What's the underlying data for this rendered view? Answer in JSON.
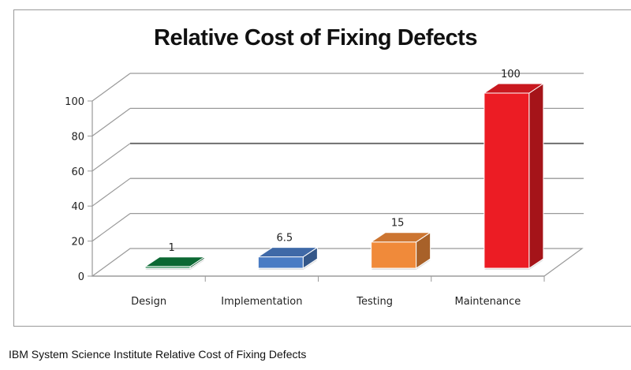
{
  "chart_data": {
    "type": "bar",
    "title": "Relative Cost of Fixing Defects",
    "categories": [
      "Design",
      "Implementation",
      "Testing",
      "Maintenance"
    ],
    "values": [
      1,
      6.5,
      15,
      100
    ],
    "data_labels": [
      "1",
      "6.5",
      "15",
      "100"
    ],
    "colors": [
      "#0e7a3c",
      "#4a7cc4",
      "#f08a3a",
      "#ec1c24"
    ],
    "ylim": [
      0,
      100
    ],
    "yticks": [
      "0",
      "20",
      "40",
      "60",
      "80",
      "100"
    ],
    "xlabel": "",
    "ylabel": "",
    "grid": true,
    "style": "3d"
  },
  "caption": "IBM System Science Institute Relative Cost of Fixing Defects"
}
